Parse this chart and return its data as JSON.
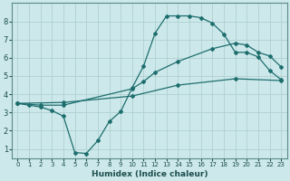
{
  "xlabel": "Humidex (Indice chaleur)",
  "bg_color": "#cce8ea",
  "grid_color": "#b0d0d2",
  "line_color": "#1e6e6e",
  "xlim": [
    -0.5,
    23.5
  ],
  "ylim": [
    0.5,
    9.0
  ],
  "xticks": [
    0,
    1,
    2,
    3,
    4,
    5,
    6,
    7,
    8,
    9,
    10,
    11,
    12,
    13,
    14,
    15,
    16,
    17,
    18,
    19,
    20,
    21,
    22,
    23
  ],
  "yticks": [
    1,
    2,
    3,
    4,
    5,
    6,
    7,
    8
  ],
  "curve1_x": [
    0,
    1,
    2,
    3,
    4,
    5,
    6,
    7,
    8,
    9,
    10,
    11,
    12,
    13,
    14,
    15,
    16,
    17,
    18,
    19,
    20,
    21,
    22,
    23
  ],
  "curve1_y": [
    3.5,
    3.4,
    3.3,
    3.1,
    2.8,
    0.8,
    0.75,
    1.45,
    2.5,
    3.05,
    4.35,
    5.55,
    7.35,
    8.3,
    8.3,
    8.3,
    8.2,
    7.9,
    7.3,
    6.3,
    6.3,
    6.05,
    5.3,
    4.8
  ],
  "curve2_x": [
    0,
    2,
    4,
    10,
    11,
    12,
    14,
    17,
    19,
    20,
    21,
    22,
    23
  ],
  "curve2_y": [
    3.5,
    3.4,
    3.4,
    4.3,
    4.7,
    5.2,
    5.8,
    6.5,
    6.8,
    6.7,
    6.3,
    6.1,
    5.5
  ],
  "curve3_x": [
    0,
    4,
    10,
    14,
    19,
    23
  ],
  "curve3_y": [
    3.5,
    3.55,
    3.9,
    4.5,
    4.85,
    4.75
  ]
}
